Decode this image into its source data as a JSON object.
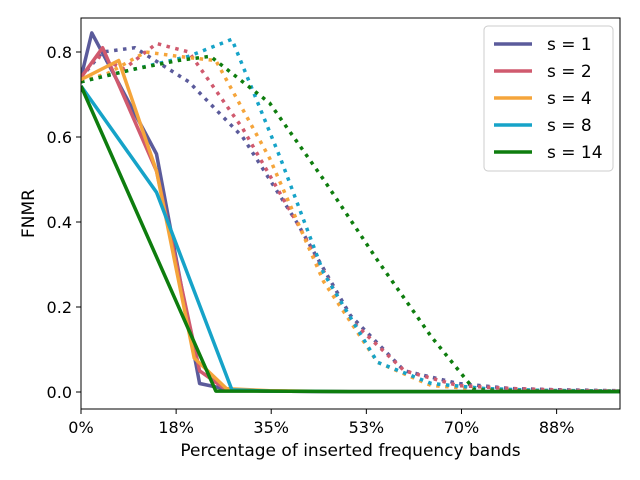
{
  "chart_data": {
    "type": "line",
    "title": "",
    "xlabel": "Percentage of inserted frequency bands",
    "ylabel": "FNMR",
    "xlim": [
      0,
      100
    ],
    "ylim": [
      -0.04,
      0.88
    ],
    "x_ticks": [
      0,
      17.65,
      35.29,
      52.94,
      70.59,
      88.24
    ],
    "x_tick_labels": [
      "0%",
      "18%",
      "35%",
      "53%",
      "70%",
      "88%"
    ],
    "y_ticks": [
      0.0,
      0.2,
      0.4,
      0.6,
      0.8
    ],
    "y_tick_labels": [
      "0.0",
      "0.2",
      "0.4",
      "0.6",
      "0.8"
    ],
    "legend": {
      "position": "top-right",
      "entries": [
        "s = 1",
        "s = 2",
        "s = 4",
        "s = 8",
        "s = 14"
      ]
    },
    "series": [
      {
        "name": "s = 1",
        "color": "#5b5b9b",
        "solid": {
          "x": [
            0,
            2,
            14,
            22,
            28,
            35,
            50,
            100
          ],
          "y": [
            0.74,
            0.845,
            0.56,
            0.02,
            0.004,
            0.002,
            0.001,
            0.001
          ]
        },
        "dotted": {
          "x": [
            0,
            4,
            10,
            20,
            30,
            40,
            50,
            60,
            70,
            80,
            90,
            100
          ],
          "y": [
            0.74,
            0.8,
            0.81,
            0.73,
            0.6,
            0.4,
            0.18,
            0.05,
            0.02,
            0.008,
            0.005,
            0.003
          ]
        }
      },
      {
        "name": "s = 2",
        "color": "#d05a6e",
        "solid": {
          "x": [
            0,
            4,
            14,
            22,
            27,
            35,
            50,
            100
          ],
          "y": [
            0.74,
            0.81,
            0.52,
            0.05,
            0.005,
            0.002,
            0.001,
            0.001
          ]
        },
        "dotted": {
          "x": [
            0,
            3,
            8,
            14,
            20,
            30,
            40,
            50,
            60,
            70,
            80,
            90,
            100
          ],
          "y": [
            0.74,
            0.79,
            0.76,
            0.82,
            0.8,
            0.62,
            0.4,
            0.17,
            0.05,
            0.015,
            0.008,
            0.004,
            0.002
          ]
        }
      },
      {
        "name": "s = 4",
        "color": "#f5a53b",
        "solid": {
          "x": [
            0,
            7,
            14,
            21,
            27,
            35,
            50,
            100
          ],
          "y": [
            0.735,
            0.78,
            0.52,
            0.08,
            0.008,
            0.003,
            0.001,
            0.001
          ]
        },
        "dotted": {
          "x": [
            0,
            5,
            12,
            18,
            25,
            35,
            45,
            55,
            65,
            75,
            85,
            100
          ],
          "y": [
            0.73,
            0.75,
            0.8,
            0.79,
            0.78,
            0.55,
            0.26,
            0.07,
            0.015,
            0.006,
            0.003,
            0.002
          ]
        }
      },
      {
        "name": "s = 8",
        "color": "#16a3c8",
        "solid": {
          "x": [
            0,
            14,
            28,
            35,
            50,
            100
          ],
          "y": [
            0.72,
            0.47,
            0.005,
            0.002,
            0.001,
            0.001
          ]
        },
        "dotted": {
          "x": [
            0,
            10,
            20,
            28,
            37,
            45,
            55,
            65,
            75,
            85,
            100
          ],
          "y": [
            0.73,
            0.76,
            0.79,
            0.83,
            0.55,
            0.28,
            0.07,
            0.02,
            0.008,
            0.004,
            0.002
          ]
        }
      },
      {
        "name": "s = 14",
        "color": "#0e7d0e",
        "solid": {
          "x": [
            0,
            25,
            35,
            50,
            100
          ],
          "y": [
            0.72,
            0.002,
            0.002,
            0.001,
            0.001
          ]
        },
        "dotted": {
          "x": [
            0,
            10,
            18,
            24,
            35,
            45,
            55,
            65,
            73,
            80,
            90,
            100
          ],
          "y": [
            0.73,
            0.76,
            0.78,
            0.79,
            0.68,
            0.5,
            0.31,
            0.13,
            0.005,
            0.003,
            0.002,
            0.002
          ]
        }
      }
    ]
  }
}
